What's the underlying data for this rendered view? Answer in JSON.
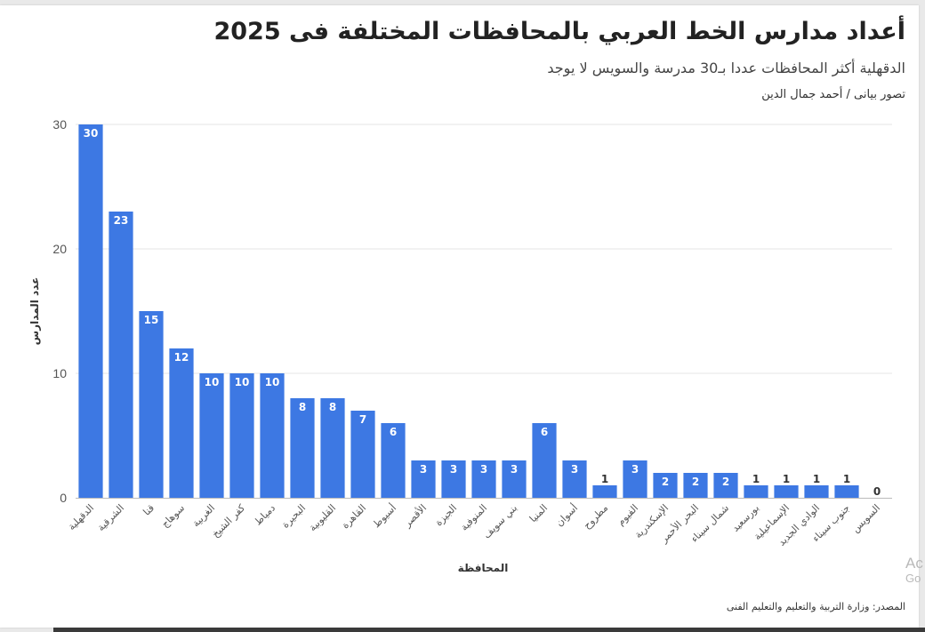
{
  "header": {
    "title": "أعداد مدارس الخط العربي بالمحافظات المختلفة فى 2025",
    "subtitle": "الدقهلية أكثر المحافظات عددا بـ30 مدرسة والسويس لا يوجد",
    "credit": "تصور بيانى / أحمد جمال الدين"
  },
  "footer": {
    "source": "المصدر: وزارة التربية والتعليم والتعليم الفنى"
  },
  "watermark": {
    "line1": "Ac",
    "line2": "Go"
  },
  "colors": {
    "bar": "#3d78e3",
    "grid": "#e4e4e4",
    "axis": "#bbbbbb",
    "text": "#444444"
  },
  "chart_data": {
    "type": "bar",
    "title": "أعداد مدارس الخط العربي بالمحافظات المختلفة فى 2025",
    "subtitle": "الدقهلية أكثر المحافظات عددا بـ30 مدرسة والسويس لا يوجد",
    "xlabel": "المحافظة",
    "ylabel": "عدد المدارس",
    "ylim": [
      0,
      30
    ],
    "yticks": [
      0,
      10,
      20,
      30
    ],
    "grid": true,
    "data_labels": true,
    "categories": [
      "الدقهلية",
      "الشرقية",
      "قنا",
      "سوهاج",
      "الغربية",
      "كفر الشيخ",
      "دمياط",
      "البحيرة",
      "القليوبية",
      "القاهرة",
      "أسيوط",
      "الأقصر",
      "الجيزة",
      "المنوفية",
      "بني سويف",
      "المنيا",
      "أسوان",
      "مطروح",
      "الفيوم",
      "الإسكندرية",
      "البحر الأحمر",
      "شمال سيناء",
      "بورسعيد",
      "الإسماعيلية",
      "الوادي الجديد",
      "جنوب سيناء",
      "السويس"
    ],
    "values": [
      30,
      23,
      15,
      12,
      10,
      10,
      10,
      8,
      8,
      7,
      6,
      3,
      3,
      3,
      3,
      6,
      3,
      1,
      3,
      2,
      2,
      2,
      1,
      1,
      1,
      1,
      0
    ]
  }
}
